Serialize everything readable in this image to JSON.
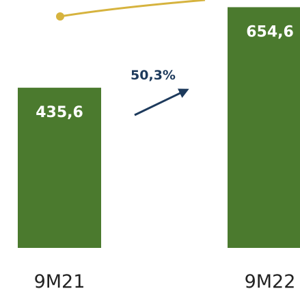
{
  "chart_data": {
    "type": "bar",
    "categories": [
      "9M21",
      "9M22"
    ],
    "values": [
      435.6,
      654.6
    ],
    "value_labels": [
      "435,6",
      "654,6"
    ],
    "color": "#4b7a2e",
    "annotation": "50,3%"
  }
}
